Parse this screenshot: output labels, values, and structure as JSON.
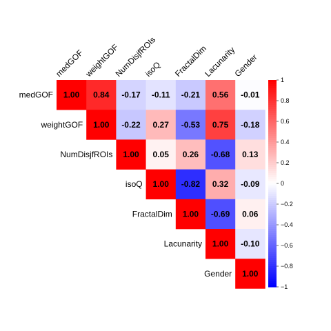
{
  "chart_data": {
    "type": "heatmap",
    "variables": [
      "medGOF",
      "weightGOF",
      "NumDisjfROIs",
      "isoQ",
      "FractalDim",
      "Lacunarity",
      "Gender"
    ],
    "matrix": [
      [
        1.0,
        0.84,
        -0.17,
        -0.11,
        -0.21,
        0.56,
        -0.01
      ],
      [
        0.84,
        1.0,
        -0.22,
        0.27,
        -0.53,
        0.75,
        -0.18
      ],
      [
        -0.17,
        -0.22,
        1.0,
        0.05,
        0.26,
        -0.68,
        0.13
      ],
      [
        -0.11,
        0.27,
        0.05,
        1.0,
        -0.82,
        0.32,
        -0.09
      ],
      [
        -0.21,
        -0.53,
        0.26,
        -0.82,
        1.0,
        -0.69,
        0.06
      ],
      [
        0.56,
        0.75,
        -0.68,
        0.32,
        -0.69,
        1.0,
        -0.1
      ],
      [
        -0.01,
        -0.18,
        0.13,
        -0.09,
        0.06,
        -0.1,
        1.0
      ]
    ],
    "shown_triangle": "upper",
    "colorscale": {
      "low": "#0000ff",
      "mid": "#ffffff",
      "high": "#ff0000",
      "range": [
        -1,
        1
      ]
    },
    "colorbar_ticks": [
      "1",
      "0.8",
      "0.6",
      "0.4",
      "0.2",
      "0",
      "−0.2",
      "−0.4",
      "−0.6",
      "−0.8",
      "−1"
    ]
  }
}
